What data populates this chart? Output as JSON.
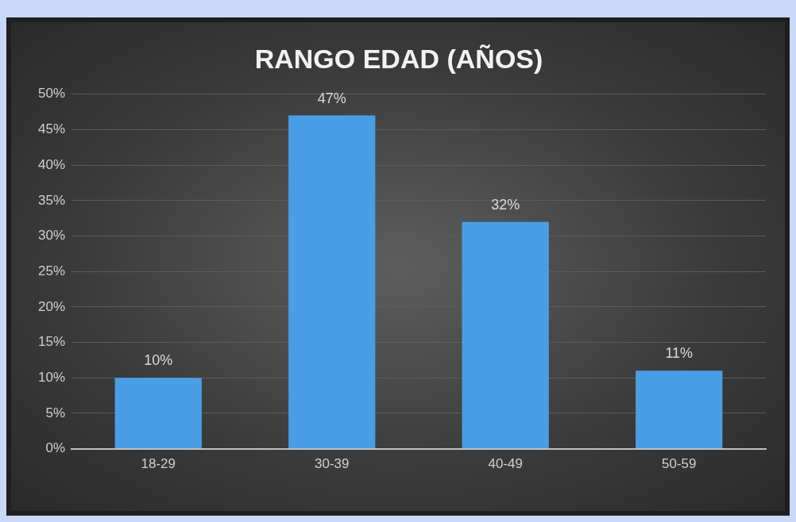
{
  "chart_data": {
    "type": "bar",
    "title": "RANGO EDAD (AÑOS)",
    "categories": [
      "18-29",
      "30-39",
      "40-49",
      "50-59"
    ],
    "values": [
      10,
      47,
      32,
      11
    ],
    "color": "#4a9ee6",
    "value_labels": [
      "10%",
      "47%",
      "32%",
      "11%"
    ],
    "ylim": [
      0,
      50
    ],
    "yticks": [
      {
        "value": 0,
        "label": "0%"
      },
      {
        "value": 5,
        "label": "5%"
      },
      {
        "value": 10,
        "label": "10%"
      },
      {
        "value": 15,
        "label": "15%"
      },
      {
        "value": 20,
        "label": "20%"
      },
      {
        "value": 25,
        "label": "25%"
      },
      {
        "value": 30,
        "label": "30%"
      },
      {
        "value": 35,
        "label": "35%"
      },
      {
        "value": 40,
        "label": "40%"
      },
      {
        "value": 45,
        "label": "45%"
      },
      {
        "value": 50,
        "label": "50%"
      }
    ],
    "grid": "y",
    "legend": false
  }
}
